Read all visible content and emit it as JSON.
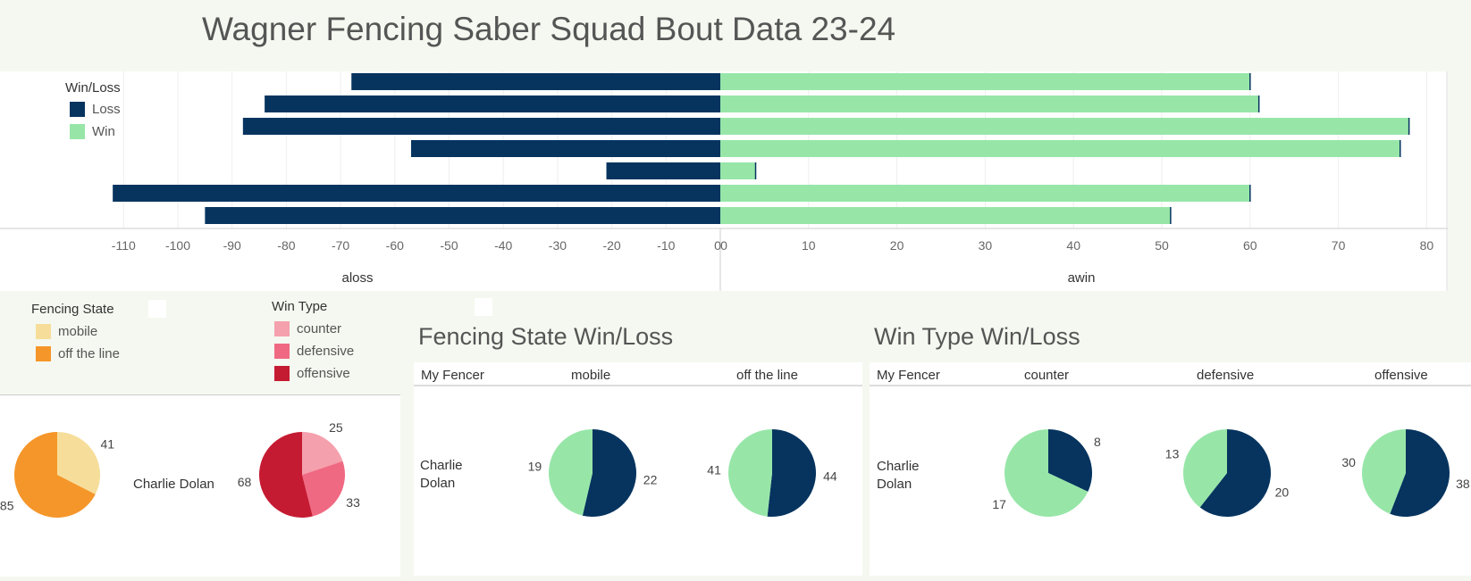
{
  "title": "Wagner Fencing Saber Squad Bout Data 23-24",
  "colors": {
    "loss": "#06345f",
    "win": "#97e6a8",
    "mobile": "#f6de9a",
    "off_the_line": "#f5962a",
    "counter": "#f4a0ad",
    "defensive": "#f06982",
    "offensive": "#c51b32"
  },
  "top_legend": {
    "title": "Win/Loss",
    "items": [
      "Loss",
      "Win"
    ]
  },
  "fencing_state_legend": {
    "title": "Fencing State",
    "items": [
      "mobile",
      "off the line"
    ]
  },
  "win_type_legend": {
    "title": "Win Type",
    "items": [
      "counter",
      "defensive",
      "offensive"
    ]
  },
  "fencing_state_section": {
    "title": "Fencing State Win/Loss",
    "col_header": "My Fencer",
    "columns": [
      "mobile",
      "off the line"
    ],
    "fencer_line1": "Charlie",
    "fencer_line2": "Dolan"
  },
  "win_type_section": {
    "title": "Win Type Win/Loss",
    "col_header": "My Fencer",
    "columns": [
      "counter",
      "defensive",
      "offensive"
    ],
    "fencer_line1": "Charlie",
    "fencer_line2": "Dolan"
  },
  "left_panel": {
    "fencer": "Charlie Dolan"
  },
  "chart_data": [
    {
      "type": "bar",
      "orientation": "horizontal-diverging",
      "series": [
        {
          "name": "Loss",
          "axis": "aloss",
          "values": [
            -68,
            -84,
            -88,
            -57,
            -21,
            -112,
            -95
          ]
        },
        {
          "name": "Win",
          "axis": "awin",
          "values": [
            60,
            61,
            78,
            77,
            4,
            60,
            51
          ]
        }
      ],
      "left_axis": {
        "label": "aloss",
        "ticks": [
          "-110",
          "-100",
          "-90",
          "-80",
          "-70",
          "-60",
          "-50",
          "-40",
          "-30",
          "-20",
          "-10",
          "0"
        ],
        "range": [
          -115,
          0
        ]
      },
      "right_axis": {
        "label": "awin",
        "ticks": [
          "0",
          "10",
          "20",
          "30",
          "40",
          "50",
          "60",
          "70",
          "80"
        ],
        "range": [
          0,
          82
        ]
      },
      "legend": "top-left",
      "grid": true
    },
    {
      "type": "pie",
      "title": "Fencing State",
      "fencer": "Charlie Dolan",
      "slices": [
        {
          "label": "mobile",
          "value": 41
        },
        {
          "label": "off the line",
          "value": 85
        }
      ]
    },
    {
      "type": "pie",
      "title": "Win Type",
      "fencer": "Charlie Dolan",
      "slices": [
        {
          "label": "counter",
          "value": 25
        },
        {
          "label": "defensive",
          "value": 33
        },
        {
          "label": "offensive",
          "value": 68
        }
      ]
    },
    {
      "type": "pie",
      "title": "Fencing State Win/Loss",
      "column": "mobile",
      "slices": [
        {
          "label": "Loss",
          "value": 22
        },
        {
          "label": "Win",
          "value": 19
        }
      ]
    },
    {
      "type": "pie",
      "title": "Fencing State Win/Loss",
      "column": "off the line",
      "slices": [
        {
          "label": "Loss",
          "value": 44
        },
        {
          "label": "Win",
          "value": 41
        }
      ]
    },
    {
      "type": "pie",
      "title": "Win Type Win/Loss",
      "column": "counter",
      "slices": [
        {
          "label": "Loss",
          "value": 8
        },
        {
          "label": "Win",
          "value": 17
        }
      ]
    },
    {
      "type": "pie",
      "title": "Win Type Win/Loss",
      "column": "defensive",
      "slices": [
        {
          "label": "Loss",
          "value": 20
        },
        {
          "label": "Win",
          "value": 13
        }
      ]
    },
    {
      "type": "pie",
      "title": "Win Type Win/Loss",
      "column": "offensive",
      "slices": [
        {
          "label": "Loss",
          "value": 38
        },
        {
          "label": "Win",
          "value": 30
        }
      ]
    }
  ]
}
